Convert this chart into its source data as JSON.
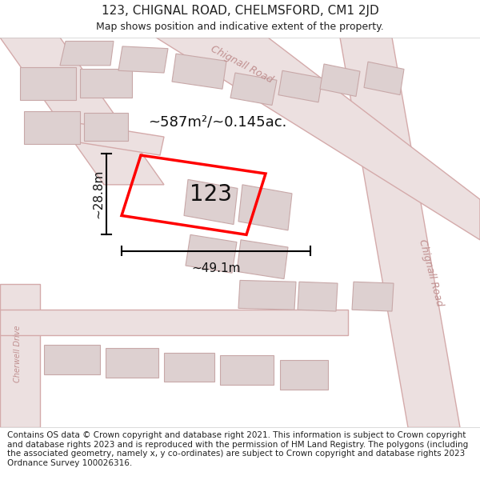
{
  "title": "123, CHIGNAL ROAD, CHELMSFORD, CM1 2JD",
  "subtitle": "Map shows position and indicative extent of the property.",
  "footer": "Contains OS data © Crown copyright and database right 2021. This information is subject to Crown copyright and database rights 2023 and is reproduced with the permission of HM Land Registry. The polygons (including the associated geometry, namely x, y co-ordinates) are subject to Crown copyright and database rights 2023 Ordnance Survey 100026316.",
  "area_label": "~587m²/~0.145ac.",
  "width_label": "~49.1m",
  "height_label": "~28.8m",
  "property_number": "123",
  "bg_color": "#ffffff",
  "text_color": "#222222",
  "road_color": "#ece0e0",
  "road_edge": "#d4aaaa",
  "building_color": "#ddd0d0",
  "building_edge": "#c8a8a8",
  "highlight_color": "#ff0000",
  "road_text_color": "#c09090",
  "title_fontsize": 11,
  "subtitle_fontsize": 9,
  "footer_fontsize": 7.5,
  "area_fontsize": 13,
  "number_fontsize": 20,
  "dim_fontsize": 11,
  "figsize": [
    6.0,
    6.25
  ],
  "dpi": 100
}
